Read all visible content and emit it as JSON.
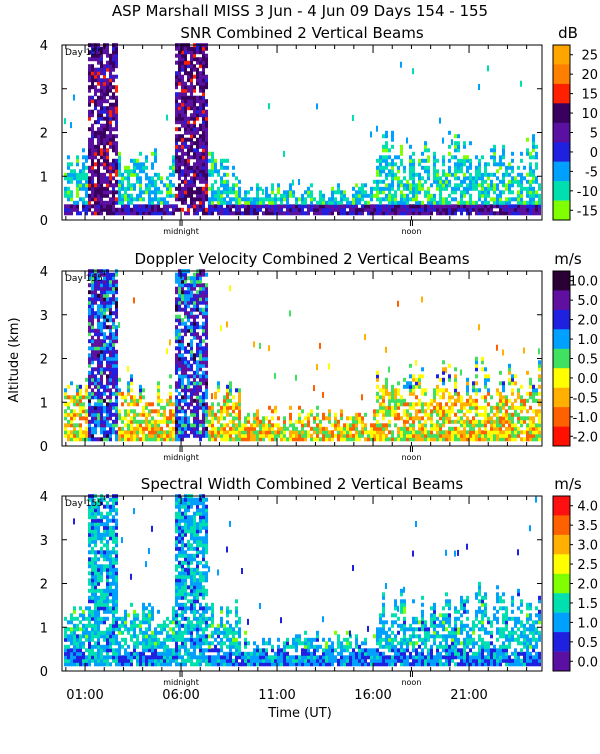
{
  "header": {
    "title": "ASP Marshall MISS    3 Jun -   4 Jun 09 Days 154 - 155"
  },
  "axes": {
    "ylabel": "Altitude (km)",
    "xlabel": "Time (UT)",
    "x_ticks": [
      "01:00",
      "06:00",
      "11:00",
      "16:00",
      "21:00"
    ],
    "x_tick_hours": [
      1,
      6,
      11,
      16,
      21
    ],
    "y_ticks": [
      "0",
      "1",
      "2",
      "3",
      "4"
    ],
    "day_label": "Day 155",
    "midnight_label": "midnight",
    "noon_label": "noon",
    "midnight_hour": 6,
    "noon_hour": 18
  },
  "chart_data": [
    {
      "type": "heatmap",
      "title": "SNR Combined 2 Vertical Beams",
      "unit": "dB",
      "colorbar_ticks": [
        "25",
        "20",
        "15",
        "10",
        "5",
        "0",
        "-5",
        "-10",
        "-15"
      ],
      "colorbar_colors": [
        "#ffa500",
        "#ff7f00",
        "#ff2000",
        "#3a0060",
        "#5a10a0",
        "#2020e0",
        "#00a0ff",
        "#00dfb0",
        "#80ff00"
      ],
      "xlim": [
        -0.2,
        24.8
      ],
      "ylim": [
        0,
        4
      ]
    },
    {
      "type": "heatmap",
      "title": "Doppler Velocity Combined 2 Vertical Beams",
      "unit": "m/s",
      "colorbar_ticks": [
        "10.0",
        "5.0",
        "2.0",
        "1.0",
        "0.5",
        "0.0",
        "-0.5",
        "-1.0",
        "-2.0"
      ],
      "colorbar_colors": [
        "#2a0035",
        "#6010a0",
        "#2020e0",
        "#00a0ff",
        "#40e060",
        "#ffff00",
        "#ffb000",
        "#ff6000",
        "#ff1000"
      ],
      "xlim": [
        -0.2,
        24.8
      ],
      "ylim": [
        0,
        4
      ]
    },
    {
      "type": "heatmap",
      "title": "Spectral Width Combined 2 Vertical Beams",
      "unit": "m/s",
      "colorbar_ticks": [
        "4.0",
        "3.5",
        "3.0",
        "2.5",
        "2.0",
        "1.5",
        "1.0",
        "0.5",
        "0.0"
      ],
      "colorbar_colors": [
        "#ff1010",
        "#ff6000",
        "#ffb000",
        "#ffff00",
        "#80ff00",
        "#00dfb0",
        "#00a0ff",
        "#2020e0",
        "#5a10a0"
      ],
      "xlim": [
        -0.2,
        24.8
      ],
      "ylim": [
        0,
        4
      ]
    }
  ]
}
